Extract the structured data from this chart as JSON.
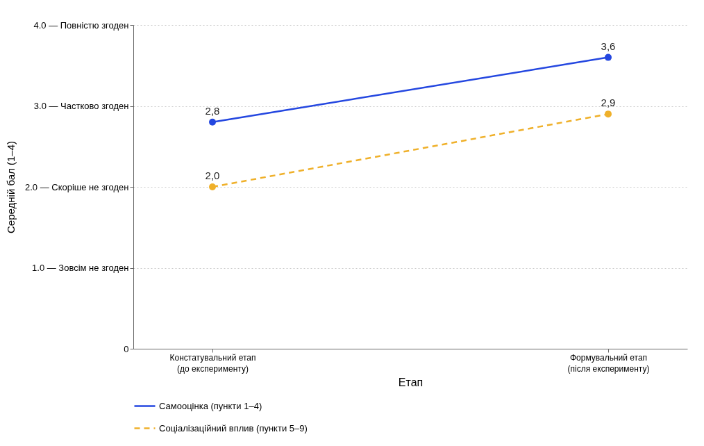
{
  "chart_data": {
    "type": "line",
    "xlabel": "Етап",
    "ylabel": "Середній бал (1–4)",
    "categories": [
      "Констатувальний етап\n(до експерименту)",
      "Формувальний етап\n(після експерименту)"
    ],
    "series": [
      {
        "name": "Самооцінка (пункти 1–4)",
        "color": "#2447e0",
        "values": [
          2.8,
          3.6
        ],
        "value_labels": [
          "2,8",
          "3,6"
        ],
        "line_style": "solid"
      },
      {
        "name": "Соціалізаційний вплив (пункти 5–9)",
        "color": "#efb02a",
        "values": [
          2.0,
          2.9
        ],
        "value_labels": [
          "2,0",
          "2,9"
        ],
        "line_style": "dashed"
      }
    ],
    "ylim": [
      0,
      4
    ],
    "yticks": [
      0,
      {
        "value": 1,
        "label": "1.0 — Зовсім не згоден"
      },
      {
        "value": 2,
        "label": "2.0 — Скоріше не згоден"
      },
      {
        "value": 3,
        "label": "3.0 — Частково згоден"
      },
      {
        "value": 4,
        "label": "4.0 — Повністю згоден"
      }
    ],
    "grid": "y",
    "legend": "bottom",
    "marker": "circle"
  }
}
